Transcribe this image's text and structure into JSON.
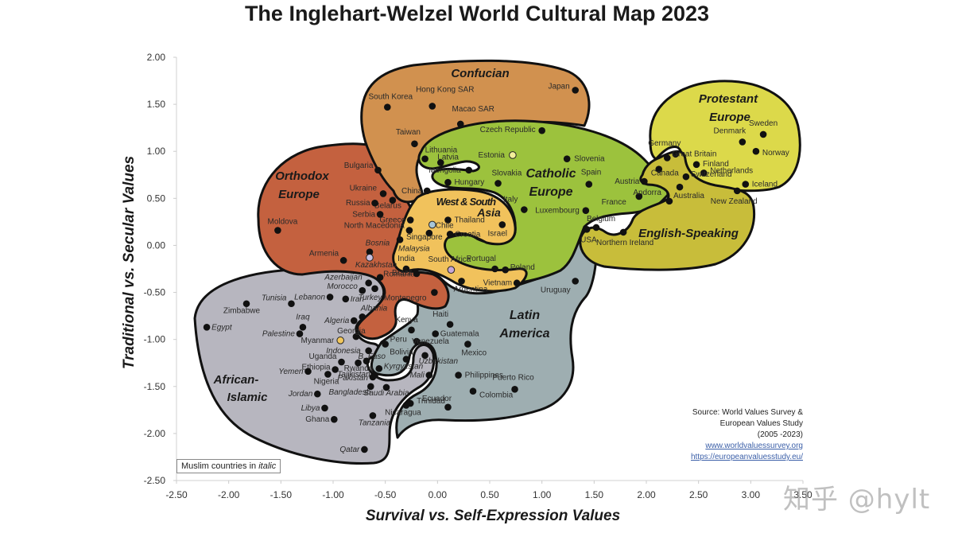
{
  "title": "The Inglehart-Welzel World Cultural Map 2023",
  "legend_note": {
    "text_prefix": "Muslim countries in ",
    "text_italic": "italic"
  },
  "source": {
    "line1": "Source: World Values Survey &",
    "line2": "European Values Study",
    "line3": "(2005 -2023)",
    "link1": "www.worldvaluessurvey.org",
    "link2": "https://europeanvaluesstudy.eu/"
  },
  "watermark": "知乎 @hylt",
  "colors": {
    "orthodox": "#c4613f",
    "confucian": "#d1914f",
    "catholic": "#9cc23d",
    "protestant": "#dcd94a",
    "english": "#c8bd3a",
    "westsouth": "#f1c25c",
    "latin": "#9eaeb1",
    "african": "#b7b6bf",
    "outline": "#111111",
    "dot": "#111111"
  },
  "chart_data": {
    "type": "scatter",
    "title": "The Inglehart-Welzel World Cultural Map 2023",
    "xlabel": "Survival vs. Self-Expression Values",
    "ylabel": "Traditional vs. Secular Values",
    "xlim": [
      -2.5,
      3.5
    ],
    "ylim": [
      -2.5,
      2.0
    ],
    "xticks": [
      "-2.50",
      "-2.00",
      "-1.50",
      "-1.00",
      "-0.50",
      "0.00",
      "0.50",
      "1.00",
      "1.50",
      "2.00",
      "2.50",
      "3.00",
      "3.50"
    ],
    "yticks": [
      "2.00",
      "1.50",
      "1.00",
      "0.50",
      "0.00",
      "-0.50",
      "-1.00",
      "-1.50",
      "-2.00",
      "-2.50"
    ],
    "grid": false,
    "clusters": [
      {
        "name": "Confucian",
        "label_lines": [
          "Confucian"
        ]
      },
      {
        "name": "Orthodox Europe",
        "label_lines": [
          "Orthodox",
          "Europe"
        ]
      },
      {
        "name": "Catholic Europe",
        "label_lines": [
          "Catholic",
          "Europe"
        ]
      },
      {
        "name": "Protestant Europe",
        "label_lines": [
          "Protestant",
          "Europe"
        ]
      },
      {
        "name": "English-Speaking",
        "label_lines": [
          "English-Speaking"
        ]
      },
      {
        "name": "West & South Asia",
        "label_lines": [
          "West & South",
          "Asia"
        ]
      },
      {
        "name": "Latin America",
        "label_lines": [
          "Latin",
          "America"
        ]
      },
      {
        "name": "African-Islamic",
        "label_lines": [
          "African-",
          "Islamic"
        ]
      }
    ],
    "points": [
      {
        "name": "Japan",
        "x": 1.32,
        "y": 1.65,
        "cluster": "Confucian",
        "muslim": false
      },
      {
        "name": "South Korea",
        "x": -0.48,
        "y": 1.47,
        "cluster": "Confucian",
        "muslim": false
      },
      {
        "name": "Hong Kong SAR",
        "x": -0.05,
        "y": 1.48,
        "cluster": "Confucian",
        "muslim": false
      },
      {
        "name": "Macao SAR",
        "x": 0.22,
        "y": 1.29,
        "cluster": "Confucian",
        "muslim": false
      },
      {
        "name": "Taiwan",
        "x": -0.22,
        "y": 1.08,
        "cluster": "Confucian",
        "muslim": false
      },
      {
        "name": "China",
        "x": -0.1,
        "y": 0.58,
        "cluster": "Confucian",
        "muslim": false
      },
      {
        "name": "Mongolia",
        "x": 0.3,
        "y": 0.8,
        "cluster": "Confucian",
        "muslim": false
      },
      {
        "name": "Czech Republic",
        "x": 1.0,
        "y": 1.22,
        "cluster": "Catholic Europe",
        "muslim": false
      },
      {
        "name": "Estonia",
        "x": 0.72,
        "y": 0.96,
        "cluster": "Catholic Europe",
        "muslim": false,
        "hollow": "#f3ef9a"
      },
      {
        "name": "Lithuania",
        "x": -0.12,
        "y": 0.92,
        "cluster": "Catholic Europe",
        "muslim": false
      },
      {
        "name": "Latvia",
        "x": 0.03,
        "y": 0.88,
        "cluster": "Catholic Europe",
        "muslim": false
      },
      {
        "name": "Slovenia",
        "x": 1.24,
        "y": 0.92,
        "cluster": "Catholic Europe",
        "muslim": false
      },
      {
        "name": "Slovakia",
        "x": 0.58,
        "y": 0.66,
        "cluster": "Catholic Europe",
        "muslim": false
      },
      {
        "name": "Hungary",
        "x": 0.1,
        "y": 0.67,
        "cluster": "Catholic Europe",
        "muslim": false
      },
      {
        "name": "Spain",
        "x": 1.45,
        "y": 0.65,
        "cluster": "Catholic Europe",
        "muslim": false
      },
      {
        "name": "Italy",
        "x": 0.83,
        "y": 0.38,
        "cluster": "Catholic Europe",
        "muslim": false
      },
      {
        "name": "Luxembourg",
        "x": 1.42,
        "y": 0.37,
        "cluster": "Catholic Europe",
        "muslim": false
      },
      {
        "name": "Belgium",
        "x": 1.52,
        "y": 0.19,
        "cluster": "Catholic Europe",
        "muslim": false
      },
      {
        "name": "Austria",
        "x": 1.98,
        "y": 0.68,
        "cluster": "Catholic Europe",
        "muslim": false
      },
      {
        "name": "France",
        "x": 1.93,
        "y": 0.52,
        "cluster": "Catholic Europe",
        "muslim": false
      },
      {
        "name": "Andorra",
        "x": 2.22,
        "y": 0.47,
        "cluster": "Catholic Europe",
        "muslim": false
      },
      {
        "name": "Croatia",
        "x": 0.12,
        "y": 0.12,
        "cluster": "Catholic Europe",
        "muslim": false
      },
      {
        "name": "Portugal",
        "x": 0.55,
        "y": -0.25,
        "cluster": "Catholic Europe",
        "muslim": false
      },
      {
        "name": "Poland",
        "x": 0.65,
        "y": -0.26,
        "cluster": "Catholic Europe",
        "muslim": false
      },
      {
        "name": "Sweden",
        "x": 3.12,
        "y": 1.18,
        "cluster": "Protestant Europe",
        "muslim": false
      },
      {
        "name": "Denmark",
        "x": 2.92,
        "y": 1.1,
        "cluster": "Protestant Europe",
        "muslim": false
      },
      {
        "name": "Norway",
        "x": 3.05,
        "y": 1.0,
        "cluster": "Protestant Europe",
        "muslim": false
      },
      {
        "name": "Germany",
        "x": 2.28,
        "y": 0.97,
        "cluster": "Protestant Europe",
        "muslim": false
      },
      {
        "name": "Finland",
        "x": 2.48,
        "y": 0.86,
        "cluster": "Protestant Europe",
        "muslim": false
      },
      {
        "name": "Netherlands",
        "x": 2.55,
        "y": 0.77,
        "cluster": "Protestant Europe",
        "muslim": false
      },
      {
        "name": "Switzerland",
        "x": 2.38,
        "y": 0.73,
        "cluster": "Protestant Europe",
        "muslim": false
      },
      {
        "name": "Iceland",
        "x": 2.95,
        "y": 0.65,
        "cluster": "Protestant Europe",
        "muslim": false
      },
      {
        "name": "Great Britain",
        "x": 2.2,
        "y": 0.93,
        "cluster": "English-Speaking",
        "muslim": false
      },
      {
        "name": "Canada",
        "x": 2.12,
        "y": 0.81,
        "cluster": "English-Speaking",
        "muslim": false
      },
      {
        "name": "Australia",
        "x": 2.32,
        "y": 0.62,
        "cluster": "English-Speaking",
        "muslim": false
      },
      {
        "name": "New Zealand",
        "x": 2.87,
        "y": 0.58,
        "cluster": "English-Speaking",
        "muslim": false
      },
      {
        "name": "USA",
        "x": 1.43,
        "y": 0.17,
        "cluster": "English-Speaking",
        "muslim": false
      },
      {
        "name": "Northern Ireland",
        "x": 1.78,
        "y": 0.14,
        "cluster": "English-Speaking",
        "muslim": false
      },
      {
        "name": "Bulgaria",
        "x": -0.57,
        "y": 0.8,
        "cluster": "Orthodox Europe",
        "muslim": false
      },
      {
        "name": "Ukraine",
        "x": -0.52,
        "y": 0.55,
        "cluster": "Orthodox Europe",
        "muslim": false
      },
      {
        "name": "Belarus",
        "x": -0.43,
        "y": 0.48,
        "cluster": "Orthodox Europe",
        "muslim": false
      },
      {
        "name": "Russia",
        "x": -0.6,
        "y": 0.45,
        "cluster": "Orthodox Europe",
        "muslim": false
      },
      {
        "name": "Serbia",
        "x": -0.55,
        "y": 0.33,
        "cluster": "Orthodox Europe",
        "muslim": false
      },
      {
        "name": "Greece",
        "x": -0.26,
        "y": 0.27,
        "cluster": "Orthodox Europe",
        "muslim": false
      },
      {
        "name": "North Macedonia",
        "x": -0.27,
        "y": 0.16,
        "cluster": "Orthodox Europe",
        "muslim": false
      },
      {
        "name": "Moldova",
        "x": -1.53,
        "y": 0.16,
        "cluster": "Orthodox Europe",
        "muslim": false
      },
      {
        "name": "Armenia",
        "x": -0.9,
        "y": -0.16,
        "cluster": "Orthodox Europe",
        "muslim": false
      },
      {
        "name": "Bosnia",
        "x": -0.65,
        "y": -0.07,
        "cluster": "Orthodox Europe",
        "muslim": true
      },
      {
        "name": "Kazakhstan",
        "x": -0.65,
        "y": -0.13,
        "cluster": "Orthodox Europe",
        "muslim": true,
        "hollow": "#c8c0e0"
      },
      {
        "name": "Romania",
        "x": -0.55,
        "y": -0.34,
        "cluster": "Orthodox Europe",
        "muslim": false
      },
      {
        "name": "Montenegro",
        "x": -0.03,
        "y": -0.5,
        "cluster": "Orthodox Europe",
        "muslim": false
      },
      {
        "name": "Georgia",
        "x": -0.78,
        "y": -0.97,
        "cluster": "Orthodox Europe",
        "muslim": false
      },
      {
        "name": "Thailand",
        "x": 0.1,
        "y": 0.27,
        "cluster": "West & South Asia",
        "muslim": false
      },
      {
        "name": "Israel",
        "x": 0.62,
        "y": 0.22,
        "cluster": "West & South Asia",
        "muslim": false
      },
      {
        "name": "Chile",
        "x": -0.05,
        "y": 0.22,
        "cluster": "West & South Asia",
        "muslim": false,
        "hollow": "#a8c6d8"
      },
      {
        "name": "Singapore",
        "x": -0.08,
        "y": 0.13,
        "cluster": "West & South Asia",
        "muslim": false
      },
      {
        "name": "Malaysia",
        "x": -0.36,
        "y": 0.06,
        "cluster": "West & South Asia",
        "muslim": true
      },
      {
        "name": "India",
        "x": -0.3,
        "y": -0.25,
        "cluster": "West & South Asia",
        "muslim": false
      },
      {
        "name": "South Africa",
        "x": 0.13,
        "y": -0.26,
        "cluster": "West & South Asia",
        "muslim": false,
        "hollow": "#c8a8d8"
      },
      {
        "name": "Vietnam",
        "x": 0.76,
        "y": -0.4,
        "cluster": "West & South Asia",
        "muslim": false
      },
      {
        "name": "Brazil",
        "x": -0.2,
        "y": -0.3,
        "cluster": "Latin America",
        "muslim": false
      },
      {
        "name": "Argentina",
        "x": 0.23,
        "y": -0.38,
        "cluster": "Latin America",
        "muslim": false
      },
      {
        "name": "Uruguay",
        "x": 1.32,
        "y": -0.38,
        "cluster": "Latin America",
        "muslim": false
      },
      {
        "name": "Haiti",
        "x": 0.12,
        "y": -0.84,
        "cluster": "Latin America",
        "muslim": false
      },
      {
        "name": "Guatemala",
        "x": -0.02,
        "y": -0.94,
        "cluster": "Latin America",
        "muslim": false
      },
      {
        "name": "Venezuela",
        "x": -0.2,
        "y": -1.02,
        "cluster": "Latin America",
        "muslim": false
      },
      {
        "name": "Mexico",
        "x": 0.29,
        "y": -1.05,
        "cluster": "Latin America",
        "muslim": false
      },
      {
        "name": "Peru",
        "x": -0.5,
        "y": -1.05,
        "cluster": "Latin America",
        "muslim": false
      },
      {
        "name": "Bolivia",
        "x": -0.3,
        "y": -1.21,
        "cluster": "Latin America",
        "muslim": false
      },
      {
        "name": "Philippines",
        "x": 0.2,
        "y": -1.38,
        "cluster": "Latin America",
        "muslim": false
      },
      {
        "name": "Puerto Rico",
        "x": 0.74,
        "y": -1.53,
        "cluster": "Latin America",
        "muslim": false
      },
      {
        "name": "Colombia",
        "x": 0.34,
        "y": -1.55,
        "cluster": "Latin America",
        "muslim": false
      },
      {
        "name": "Ecuador",
        "x": 0.1,
        "y": -1.72,
        "cluster": "Latin America",
        "muslim": false
      },
      {
        "name": "Trinidad",
        "x": -0.26,
        "y": -1.68,
        "cluster": "Latin America",
        "muslim": false
      },
      {
        "name": "Nicaragua",
        "x": -0.3,
        "y": -1.7,
        "cluster": "Latin America",
        "muslim": false
      },
      {
        "name": "Kenya",
        "x": -0.25,
        "y": -0.9,
        "cluster": "African-Islamic",
        "muslim": false
      },
      {
        "name": "Uzbekistan",
        "x": -0.12,
        "y": -1.17,
        "cluster": "African-Islamic",
        "muslim": true
      },
      {
        "name": "Mali",
        "x": -0.08,
        "y": -1.38,
        "cluster": "African-Islamic",
        "muslim": true
      },
      {
        "name": "Azerbaijan",
        "x": -0.66,
        "y": -0.4,
        "cluster": "African-Islamic",
        "muslim": true
      },
      {
        "name": "Turkey",
        "x": -0.6,
        "y": -0.46,
        "cluster": "African-Islamic",
        "muslim": true
      },
      {
        "name": "Morocco",
        "x": -0.72,
        "y": -0.48,
        "cluster": "African-Islamic",
        "muslim": true
      },
      {
        "name": "Lebanon",
        "x": -1.03,
        "y": -0.55,
        "cluster": "African-Islamic",
        "muslim": true
      },
      {
        "name": "Iran",
        "x": -0.88,
        "y": -0.57,
        "cluster": "African-Islamic",
        "muslim": true
      },
      {
        "name": "Tunisia",
        "x": -1.4,
        "y": -0.62,
        "cluster": "African-Islamic",
        "muslim": true
      },
      {
        "name": "Zimbabwe",
        "x": -1.83,
        "y": -0.62,
        "cluster": "African-Islamic",
        "muslim": false
      },
      {
        "name": "Albania",
        "x": -0.72,
        "y": -0.76,
        "cluster": "African-Islamic",
        "muslim": true
      },
      {
        "name": "Algeria",
        "x": -0.8,
        "y": -0.8,
        "cluster": "African-Islamic",
        "muslim": true
      },
      {
        "name": "Iraq",
        "x": -1.29,
        "y": -0.87,
        "cluster": "African-Islamic",
        "muslim": true
      },
      {
        "name": "Egypt",
        "x": -2.21,
        "y": -0.87,
        "cluster": "African-Islamic",
        "muslim": true
      },
      {
        "name": "Palestine",
        "x": -1.32,
        "y": -0.94,
        "cluster": "African-Islamic",
        "muslim": true
      },
      {
        "name": "Myanmar",
        "x": -0.93,
        "y": -1.01,
        "cluster": "African-Islamic",
        "muslim": false,
        "hollow": "#f2c75c"
      },
      {
        "name": "Indonesia",
        "x": -0.66,
        "y": -1.12,
        "cluster": "African-Islamic",
        "muslim": true
      },
      {
        "name": "Rwanda",
        "x": -0.68,
        "y": -1.23,
        "cluster": "African-Islamic",
        "muslim": false
      },
      {
        "name": "Uganda",
        "x": -0.92,
        "y": -1.24,
        "cluster": "African-Islamic",
        "muslim": false
      },
      {
        "name": "B. Faso",
        "x": -0.76,
        "y": -1.25,
        "cluster": "African-Islamic",
        "muslim": true
      },
      {
        "name": "Ethiopia",
        "x": -0.98,
        "y": -1.32,
        "cluster": "African-Islamic",
        "muslim": false
      },
      {
        "name": "Yemen",
        "x": -1.24,
        "y": -1.34,
        "cluster": "African-Islamic",
        "muslim": true
      },
      {
        "name": "Nigeria",
        "x": -1.05,
        "y": -1.37,
        "cluster": "African-Islamic",
        "muslim": false
      },
      {
        "name": "Kyrgyzstan",
        "x": -0.56,
        "y": -1.31,
        "cluster": "African-Islamic",
        "muslim": true
      },
      {
        "name": "Tajikistan",
        "x": -0.6,
        "y": -1.38,
        "cluster": "African-Islamic",
        "muslim": true
      },
      {
        "name": "Pakistan",
        "x": -0.62,
        "y": -1.4,
        "cluster": "African-Islamic",
        "muslim": true
      },
      {
        "name": "Bangladesh",
        "x": -0.64,
        "y": -1.5,
        "cluster": "African-Islamic",
        "muslim": true
      },
      {
        "name": "Saudi Arabia",
        "x": -0.49,
        "y": -1.51,
        "cluster": "African-Islamic",
        "muslim": true
      },
      {
        "name": "Jordan",
        "x": -1.15,
        "y": -1.58,
        "cluster": "African-Islamic",
        "muslim": true
      },
      {
        "name": "Libya",
        "x": -1.08,
        "y": -1.73,
        "cluster": "African-Islamic",
        "muslim": true
      },
      {
        "name": "Ghana",
        "x": -0.99,
        "y": -1.85,
        "cluster": "African-Islamic",
        "muslim": false
      },
      {
        "name": "Tanzania",
        "x": -0.62,
        "y": -1.81,
        "cluster": "African-Islamic",
        "muslim": true
      },
      {
        "name": "Qatar",
        "x": -0.7,
        "y": -2.17,
        "cluster": "African-Islamic",
        "muslim": true
      }
    ]
  }
}
